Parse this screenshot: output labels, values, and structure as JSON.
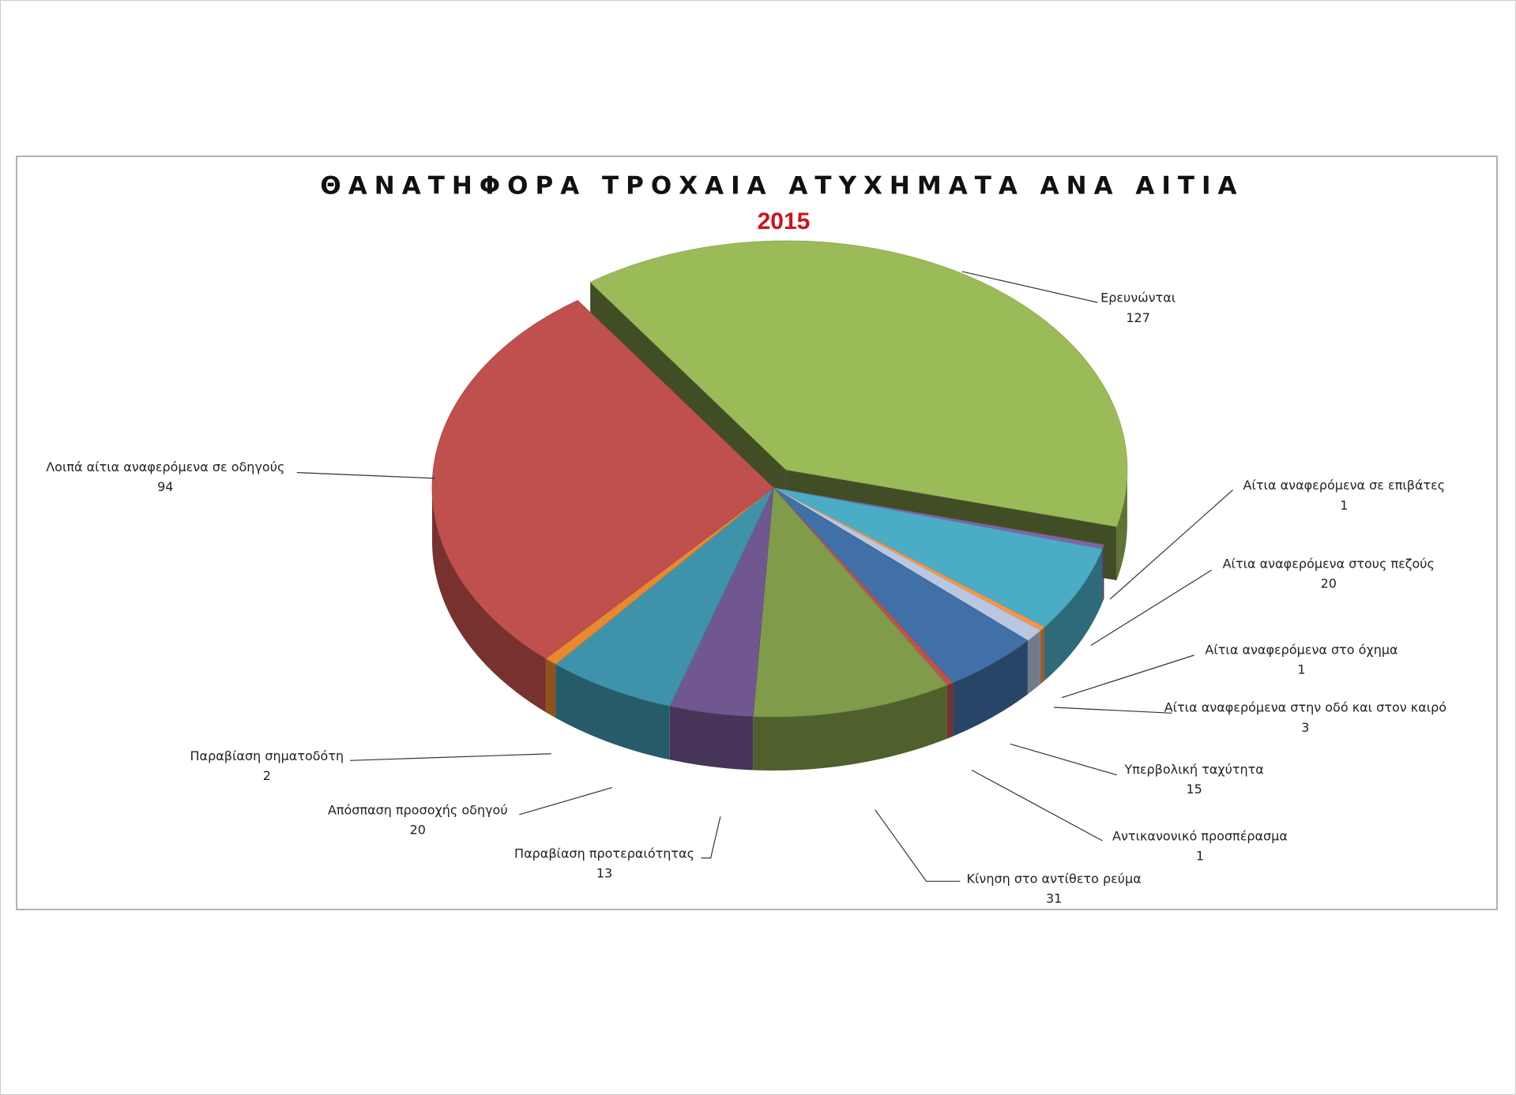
{
  "chart_data": {
    "type": "pie3d",
    "title": "ΘΑΝΑΤΗΦΟΡΑ ΤΡΟΧΑΙΑ ΑΤΥΧΗΜΑΤΑ ΑΝΑ ΑΙΤΙΑ",
    "subtitle": "2015",
    "categories": [
      "Ερευνώνται",
      "Αίτια αναφερόμενα σε επιβάτες",
      "Αίτια αναφερόμενα στους πεζούς",
      "Αίτια αναφερόμενα στο όχημα",
      "Αίτια αναφερόμενα στην οδό και στον καιρό",
      "Υπερβολική ταχύτητα",
      "Αντικανονικό προσπέρασμα",
      "Κίνηση στο αντίθετο ρεύμα",
      "Παραβίαση προτεραιότητας",
      "Απόσπαση προσοχής οδηγού",
      "Παραβίαση σηματοδότη",
      "Λοιπά αίτια αναφερόμενα σε οδηγούς"
    ],
    "values": [
      127,
      1,
      20,
      1,
      3,
      15,
      1,
      31,
      13,
      20,
      2,
      94
    ],
    "colors": [
      "#9bbb59",
      "#8064a2",
      "#4bacc6",
      "#f79646",
      "#b9c7e2",
      "#4170a8",
      "#c0504d",
      "#809b4a",
      "#71578f",
      "#3e93ab",
      "#e8892f",
      "#c0504d"
    ]
  }
}
